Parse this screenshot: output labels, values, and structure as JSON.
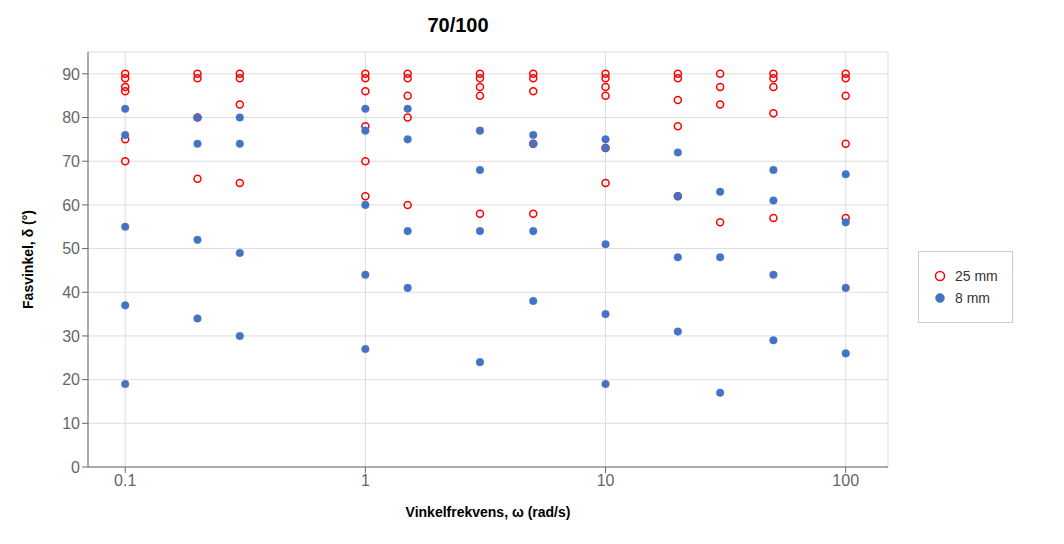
{
  "chart_data": {
    "type": "scatter",
    "title": "70/100",
    "x_label": "Vinkelfrekvens, ω (rad/s)",
    "y_label": "Fasvinkel, δ (°)",
    "log": "x",
    "xlim": [
      0.07,
      150
    ],
    "xticks": [
      0.1,
      1,
      10,
      100
    ],
    "ylim": [
      0,
      95
    ],
    "yticks": [
      0,
      10,
      20,
      30,
      40,
      50,
      60,
      70,
      80,
      90
    ],
    "grid": true,
    "legend": "right",
    "series": [
      {
        "name": "25 mm",
        "color": "#ff0000",
        "marker": "circle_open",
        "x": [
          0.1,
          0.1,
          0.1,
          0.1,
          0.1,
          0.1,
          0.2,
          0.2,
          0.2,
          0.2,
          0.3,
          0.3,
          0.3,
          0.3,
          1.0,
          1.0,
          1.0,
          1.0,
          1.0,
          1.0,
          1.5,
          1.5,
          1.5,
          1.5,
          1.5,
          3.0,
          3.0,
          3.0,
          3.0,
          3.0,
          5.0,
          5.0,
          5.0,
          5.0,
          5.0,
          10.0,
          10.0,
          10.0,
          10.0,
          10.0,
          10.0,
          20.0,
          20.0,
          20.0,
          20.0,
          20.0,
          30.0,
          30.0,
          30.0,
          30.0,
          50.0,
          50.0,
          50.0,
          50.0,
          50.0,
          100.0,
          100.0,
          100.0,
          100.0,
          100.0
        ],
        "values": [
          90,
          89,
          87,
          86,
          75,
          70,
          90,
          89,
          80,
          66,
          90,
          89,
          83,
          65,
          90,
          89,
          86,
          78,
          70,
          62,
          90,
          89,
          85,
          80,
          60,
          90,
          89,
          87,
          85,
          58,
          90,
          89,
          86,
          74,
          58,
          90,
          89,
          87,
          85,
          73,
          65,
          90,
          89,
          84,
          78,
          62,
          90,
          87,
          83,
          56,
          90,
          89,
          87,
          81,
          57,
          90,
          89,
          85,
          74,
          57
        ]
      },
      {
        "name": "8 mm",
        "color": "#4472c4",
        "marker": "circle",
        "x": [
          0.1,
          0.1,
          0.1,
          0.1,
          0.1,
          0.2,
          0.2,
          0.2,
          0.2,
          0.3,
          0.3,
          0.3,
          0.3,
          1.0,
          1.0,
          1.0,
          1.0,
          1.0,
          1.5,
          1.5,
          1.5,
          1.5,
          3.0,
          3.0,
          3.0,
          3.0,
          5.0,
          5.0,
          5.0,
          5.0,
          10.0,
          10.0,
          10.0,
          10.0,
          10.0,
          20.0,
          20.0,
          20.0,
          20.0,
          30.0,
          30.0,
          30.0,
          50.0,
          50.0,
          50.0,
          50.0,
          100.0,
          100.0,
          100.0,
          100.0
        ],
        "values": [
          82,
          76,
          55,
          37,
          19,
          80,
          74,
          52,
          34,
          80,
          74,
          49,
          30,
          82,
          77,
          60,
          44,
          27,
          82,
          75,
          54,
          41,
          77,
          68,
          54,
          24,
          76,
          74,
          54,
          38,
          75,
          73,
          51,
          35,
          19,
          72,
          62,
          48,
          31,
          63,
          48,
          17,
          68,
          61,
          44,
          29,
          67,
          56,
          41,
          26
        ]
      }
    ]
  }
}
